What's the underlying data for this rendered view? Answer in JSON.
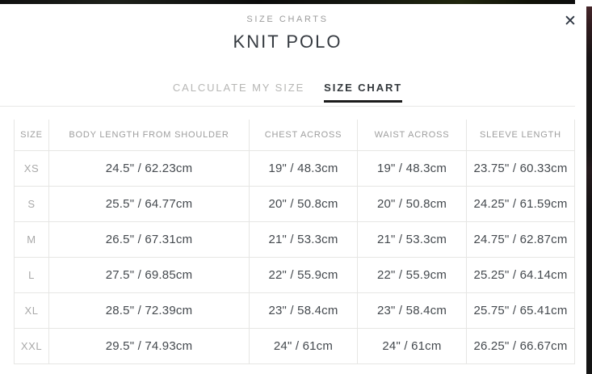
{
  "modal": {
    "eyebrow": "SIZE CHARTS",
    "title": "KNIT POLO",
    "close_icon": "✕"
  },
  "tabs": [
    {
      "label": "CALCULATE MY SIZE",
      "active": false
    },
    {
      "label": "SIZE CHART",
      "active": true
    }
  ],
  "table": {
    "columns": [
      "SIZE",
      "BODY LENGTH FROM SHOULDER",
      "CHEST ACROSS",
      "WAIST ACROSS",
      "SLEEVE LENGTH"
    ],
    "rows": [
      {
        "size": "XS",
        "values": [
          "24.5\" / 62.23cm",
          "19\" / 48.3cm",
          "19\" / 48.3cm",
          "23.75\" / 60.33cm"
        ]
      },
      {
        "size": "S",
        "values": [
          "25.5\" / 64.77cm",
          "20\" / 50.8cm",
          "20\" / 50.8cm",
          "24.25\" / 61.59cm"
        ]
      },
      {
        "size": "M",
        "values": [
          "26.5\" / 67.31cm",
          "21\" / 53.3cm",
          "21\" / 53.3cm",
          "24.75\" / 62.87cm"
        ]
      },
      {
        "size": "L",
        "values": [
          "27.5\" / 69.85cm",
          "22\" / 55.9cm",
          "22\" / 55.9cm",
          "25.25\" / 64.14cm"
        ]
      },
      {
        "size": "XL",
        "values": [
          "28.5\" / 72.39cm",
          "23\" / 58.4cm",
          "23\" / 58.4cm",
          "25.75\" / 65.41cm"
        ]
      },
      {
        "size": "XXL",
        "values": [
          "29.5\" / 74.93cm",
          "24\" / 61cm",
          "24\" / 61cm",
          "26.25\" / 66.67cm"
        ]
      }
    ]
  },
  "colors": {
    "active_tab_underline": "#1c1c1c",
    "table_border": "#e6e6e4",
    "header_text": "#9e9e9e",
    "value_text": "#44494e",
    "muted_text": "#a9a9a9"
  }
}
